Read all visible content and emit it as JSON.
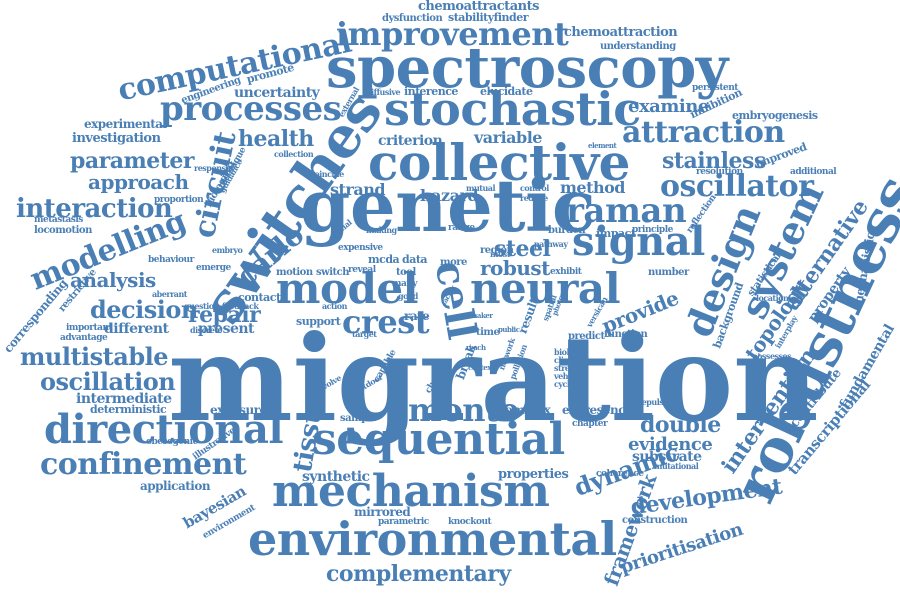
{
  "cloud": {
    "color": "#4a7fb5",
    "background": "#ffffff",
    "words": [
      "migration",
      "genetic",
      "spectroscopy",
      "collective",
      "stochastic",
      "switches",
      "robustness",
      "model",
      "neural",
      "sequential",
      "environmental",
      "mechanism",
      "directional",
      "signal",
      "design",
      "system",
      "raman",
      "cell",
      "processes",
      "improvement",
      "computational",
      "confinement",
      "monte",
      "crest",
      "modelling",
      "circuit",
      "attraction",
      "oscillator",
      "interaction",
      "carlo",
      "multistable",
      "oscillation",
      "decision",
      "tissue",
      "repair",
      "health",
      "parameter",
      "approach",
      "analysis",
      "complementary",
      "intervention",
      "alternative",
      "stainless",
      "dynamic",
      "development",
      "topology",
      "double",
      "evidence",
      "steel",
      "robust",
      "provide",
      "method",
      "strand",
      "hazard",
      "variable",
      "criterion",
      "uncertainty",
      "examine",
      "framework",
      "prioritisation",
      "investigation",
      "experimental",
      "engineering",
      "promote",
      "inference",
      "elucidate",
      "chemoattractants",
      "dysfunction",
      "stabilityfinder",
      "chemoattraction",
      "understanding",
      "persistent",
      "inhibition",
      "embryogenesis",
      "intermediate",
      "deterministic",
      "exposure",
      "bayesian",
      "application",
      "synthetic",
      "properties",
      "mirrored",
      "parametric",
      "knockout",
      "construction",
      "substrate",
      "transcriptional",
      "fundamental",
      "contribute",
      "mechanistic",
      "property",
      "statistical",
      "number",
      "function",
      "predict",
      "complex",
      "expresence",
      "chapter",
      "different",
      "present",
      "contact",
      "motion",
      "switch",
      "support",
      "rate",
      "data",
      "more",
      "tool",
      "region",
      "burden",
      "impact",
      "principle",
      "reflection",
      "resolution",
      "improved",
      "additional",
      "background",
      "corresponding",
      "restrictive",
      "advantage",
      "important",
      "behaviour",
      "locomotion",
      "metastasis",
      "proportion",
      "biological",
      "technique",
      "guidance",
      "response",
      "diffusive",
      "external",
      "collection",
      "coincide",
      "reduce",
      "control",
      "mutual",
      "range",
      "crucial",
      "making",
      "expensive",
      "mcda",
      "reveal",
      "many",
      "good",
      "sample",
      "illustrative",
      "obesogenic",
      "environment",
      "coherence",
      "mutational",
      "repulsive",
      "versican",
      "location",
      "possesses",
      "interplay",
      "aberrant",
      "question",
      "feedback",
      "discrete",
      "emerge",
      "embryo",
      "target",
      "action",
      "capable",
      "break",
      "outdoor",
      "involve",
      "change",
      "time",
      "most",
      "pathway",
      "exhibit",
      "stream",
      "cycling",
      "clinical",
      "biology",
      "spatial",
      "photon",
      "result",
      "network",
      "pollution",
      "element",
      "vehicle",
      "reach",
      "factor",
      "context",
      "public",
      "maker"
    ]
  }
}
